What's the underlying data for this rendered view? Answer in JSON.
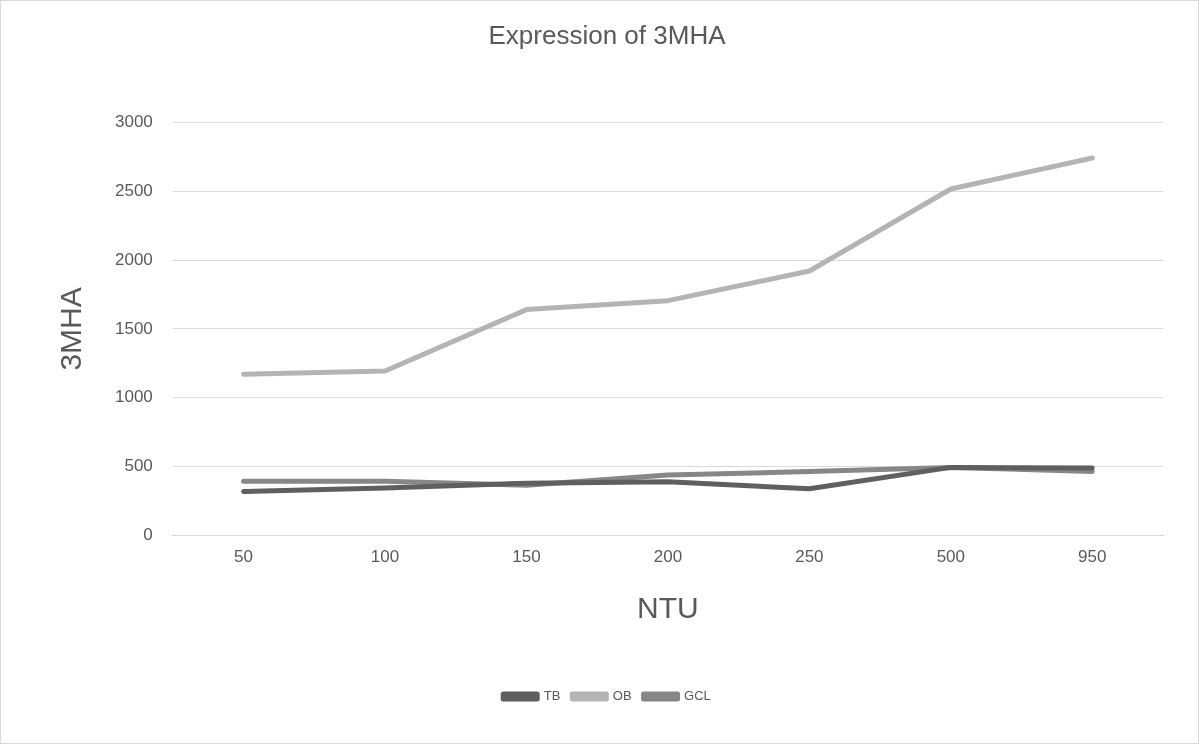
{
  "chart_data": {
    "type": "line",
    "title": "Expression of 3MHA",
    "xlabel": "NTU",
    "ylabel": "3MHA",
    "categories": [
      "50",
      "100",
      "150",
      "200",
      "250",
      "500",
      "950"
    ],
    "series": [
      {
        "name": "TB",
        "color": "#5f5f5f",
        "values": [
          320,
          345,
          380,
          390,
          340,
          495,
          490
        ]
      },
      {
        "name": "OB",
        "color": "#b4b4b4",
        "values": [
          1170,
          1195,
          1640,
          1705,
          1920,
          2515,
          2740
        ]
      },
      {
        "name": "GCL",
        "color": "#878787",
        "values": [
          395,
          395,
          365,
          440,
          465,
          495,
          465
        ]
      }
    ],
    "ylim": [
      0,
      3000
    ],
    "yticks": [
      0,
      500,
      1000,
      1500,
      2000,
      2500,
      3000
    ],
    "grid": "y",
    "legend": "bottom",
    "marker": "none",
    "line_style": "solid"
  }
}
